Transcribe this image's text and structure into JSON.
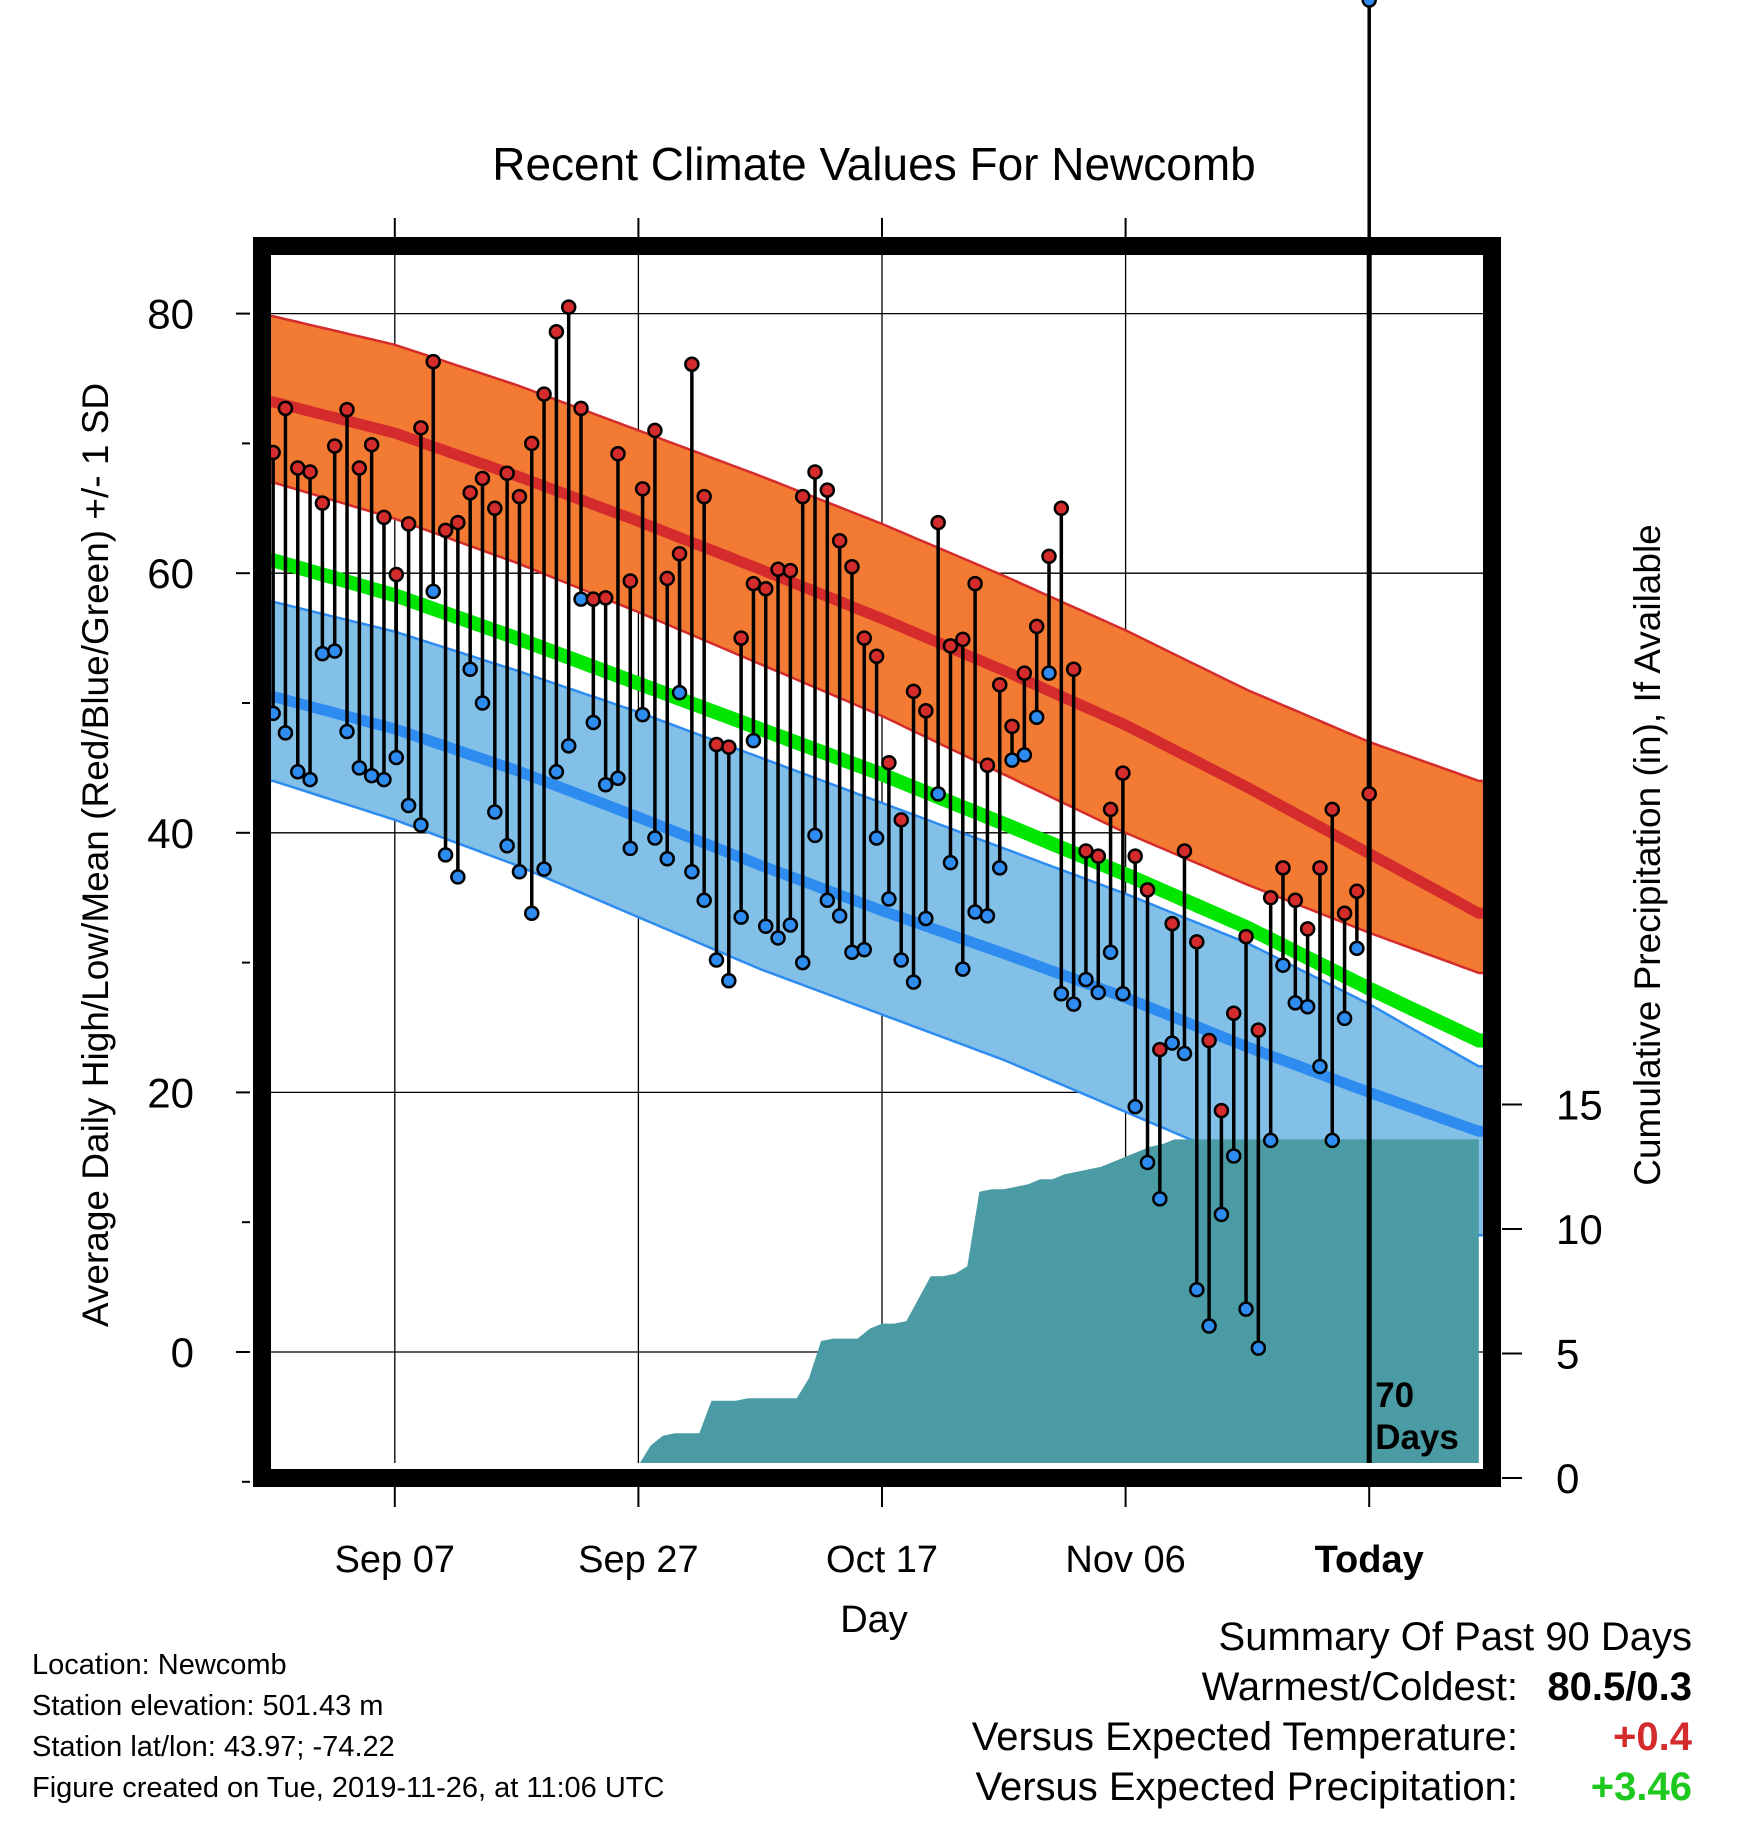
{
  "chart_data": {
    "type": "line",
    "title": "Recent Climate Values For Newcomb",
    "xlabel": "Day",
    "ylabel": "Average Daily High/Low/Mean (Red/Blue/Green) +/- 1 SD",
    "y2label": "Cumulative Precipitation (in), If Available",
    "ylim": [
      -9,
      85
    ],
    "y2lim": [
      0,
      41
    ],
    "y_ticks": [
      0,
      20,
      40,
      60,
      80
    ],
    "y2_ticks": [
      0,
      5,
      10,
      15
    ],
    "x_tick_labels": [
      "Sep 07",
      "Sep 27",
      "Oct 17",
      "Nov 06",
      "Today"
    ],
    "x_tick_days": [
      10,
      30,
      50,
      70,
      90
    ],
    "today_day": 90,
    "today_marker_label": [
      "70",
      "Days"
    ],
    "grid": true,
    "colors": {
      "high_band": "#F37A32",
      "high_mean": "#D42C2C",
      "low_band": "#82C0E8",
      "low_mean": "#2E8CF0",
      "mean_line": "#00E600",
      "overlap": "#8F1518",
      "precip": "#4A9BA3",
      "high_marker": "#D42C2C",
      "low_marker": "#2E8CF0"
    },
    "normals": {
      "days": [
        0,
        10,
        20,
        30,
        40,
        50,
        60,
        70,
        80,
        90,
        99
      ],
      "high_upper": [
        79.8,
        77.6,
        74.5,
        71.0,
        67.5,
        63.8,
        59.8,
        55.6,
        51.0,
        47.0,
        44.0
      ],
      "high_mean": [
        73.2,
        70.8,
        67.5,
        64.0,
        60.3,
        56.5,
        52.5,
        48.3,
        43.5,
        38.4,
        33.8
      ],
      "high_lower": [
        67.0,
        64.2,
        60.8,
        57.0,
        53.0,
        49.0,
        44.5,
        40.0,
        36.0,
        32.3,
        29.2
      ],
      "mean": [
        61.0,
        58.3,
        55.0,
        51.5,
        48.0,
        44.5,
        40.7,
        36.8,
        32.7,
        28.0,
        24.0
      ],
      "low_upper": [
        57.8,
        55.5,
        52.5,
        49.3,
        45.8,
        42.3,
        38.8,
        35.3,
        31.5,
        26.8,
        22.0
      ],
      "low_mean": [
        50.5,
        48.0,
        44.8,
        41.2,
        37.5,
        34.0,
        30.7,
        27.3,
        23.5,
        20.0,
        17.0
      ],
      "low_lower": [
        44.0,
        41.0,
        37.5,
        33.5,
        29.5,
        26.0,
        22.5,
        18.5,
        14.5,
        12.0,
        9.0
      ]
    },
    "observations": {
      "highs": [
        66.2,
        69.3,
        72.7,
        68.1,
        67.8,
        65.4,
        69.8,
        72.6,
        68.1,
        69.9,
        64.3,
        59.9,
        63.8,
        71.2,
        76.3,
        63.3,
        63.9,
        66.2,
        67.3,
        65.0,
        67.7,
        65.9,
        70.0,
        73.8,
        78.6,
        80.5,
        72.7,
        58.0,
        58.1,
        69.2,
        59.4,
        66.5,
        71.0,
        59.6,
        61.5,
        76.1,
        65.9,
        46.8,
        46.6,
        55.0,
        59.2,
        58.8,
        60.3,
        60.2,
        65.9,
        67.8,
        66.4,
        62.5,
        60.5,
        55.0,
        53.6,
        45.4,
        41.0,
        50.9,
        49.4,
        63.9,
        54.4,
        54.9,
        59.2,
        45.2,
        51.4,
        48.2,
        52.3,
        55.9,
        61.3,
        65.0,
        52.6,
        38.6,
        38.2,
        41.8,
        44.6,
        38.2,
        35.6,
        23.3,
        33.0,
        38.6,
        31.6,
        24.0,
        18.6,
        26.1,
        32.0,
        24.8,
        35.0,
        37.3,
        34.8,
        32.6,
        37.3,
        41.8,
        33.8,
        35.5,
        43.0
      ],
      "lows": [
        56.3,
        49.2,
        47.7,
        44.7,
        44.1,
        53.8,
        54.0,
        47.8,
        45.0,
        44.4,
        44.1,
        45.8,
        42.1,
        40.6,
        58.6,
        38.3,
        36.6,
        52.6,
        50.0,
        41.6,
        39.0,
        37.0,
        33.8,
        37.2,
        44.7,
        46.7,
        58.0,
        48.5,
        43.7,
        44.2,
        38.8,
        49.1,
        39.6,
        38.0,
        50.8,
        37.0,
        34.8,
        30.2,
        28.6,
        33.5,
        47.1,
        32.8,
        31.9,
        32.9,
        30.0,
        39.8,
        34.8,
        33.6,
        30.8,
        31.0,
        39.6,
        34.9,
        30.2,
        28.5,
        33.4,
        43.0,
        37.7,
        29.5,
        33.9,
        33.6,
        37.3,
        45.6,
        46.0,
        48.9,
        52.3,
        27.6,
        26.8,
        28.7,
        27.7,
        30.8,
        27.6,
        18.9,
        14.6,
        11.8,
        23.8,
        23.0,
        4.8,
        2.0,
        10.6,
        15.1,
        3.3,
        0.3,
        16.3,
        29.8,
        26.9,
        26.6,
        22.0,
        16.3,
        25.7,
        31.1
      ],
      "start_day": -1
    },
    "precipitation": {
      "days": [
        26,
        27,
        28,
        29,
        30,
        31,
        32,
        33,
        34,
        35,
        36,
        37,
        38,
        39,
        40,
        41,
        42,
        43,
        44,
        45,
        46,
        47,
        48,
        49,
        50,
        51,
        52,
        53,
        54,
        55,
        56,
        57,
        58,
        59,
        60,
        61,
        62,
        63,
        64,
        65,
        66,
        67,
        68,
        69,
        70,
        71,
        72,
        73,
        74,
        75,
        76,
        77,
        78,
        79,
        80,
        81,
        82,
        83,
        84,
        85,
        86,
        87,
        88,
        89,
        90,
        91,
        92,
        93,
        94,
        95,
        96,
        97,
        98,
        99
      ],
      "values": [
        0.2,
        0.4,
        0.5,
        0.5,
        0.5,
        1.3,
        1.7,
        1.8,
        1.8,
        1.8,
        3.1,
        3.1,
        3.1,
        3.2,
        3.2,
        3.2,
        3.2,
        3.2,
        4.0,
        5.5,
        5.6,
        5.6,
        5.6,
        6.0,
        6.2,
        6.2,
        6.3,
        7.2,
        8.1,
        8.1,
        8.2,
        8.5,
        11.5,
        11.6,
        11.6,
        11.7,
        11.8,
        12.0,
        12.0,
        12.2,
        12.3,
        12.4,
        12.5,
        12.7,
        12.9,
        13.1,
        13.3,
        13.4,
        13.6,
        13.6,
        13.6,
        13.6,
        13.6,
        13.6,
        13.6,
        13.6,
        13.6,
        13.6,
        13.6,
        13.6,
        13.6,
        13.6,
        13.6,
        13.6,
        13.6,
        13.6,
        13.6,
        13.6,
        13.6,
        13.6,
        13.6,
        13.6,
        13.6,
        13.6
      ]
    }
  },
  "info": {
    "location": "Location: Newcomb",
    "elevation": "Station elevation: 501.43 m",
    "latlon": "Station lat/lon: 43.97; -74.22",
    "created": "Figure created on Tue, 2019-11-26, at 11:06 UTC"
  },
  "summary": {
    "heading": "Summary Of Past 90 Days",
    "warmest_label": "Warmest/Coldest:",
    "warmest_value": "80.5/0.3",
    "temp_label": "Versus Expected Temperature:",
    "temp_value": "+0.4",
    "temp_color": "#D42C2C",
    "precip_label": "Versus Expected Precipitation:",
    "precip_value": "+3.46",
    "precip_color": "#1EC81E"
  }
}
